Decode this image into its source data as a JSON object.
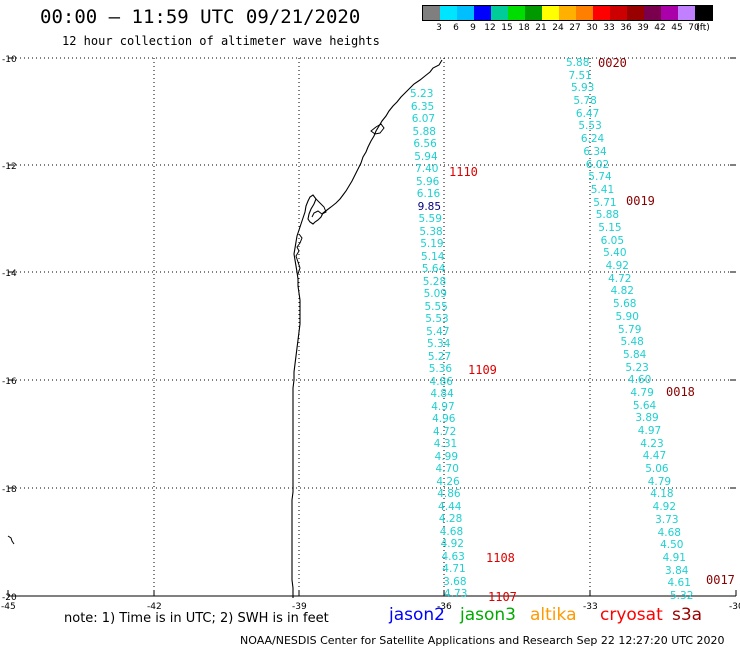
{
  "title": "00:00 – 11:59 UTC 09/21/2020",
  "subtitle": "12 hour collection of altimeter wave heights",
  "colorbar": {
    "colors": [
      "#7f7f7f",
      "#00e5ff",
      "#00bfff",
      "#0000ff",
      "#00cc99",
      "#00dd00",
      "#009900",
      "#ffff00",
      "#ffb000",
      "#ff8000",
      "#ff0000",
      "#cc0000",
      "#990000",
      "#7a004d",
      "#aa00aa",
      "#c080ff",
      "#000000"
    ],
    "labels": [
      "3",
      "6",
      "9",
      "12",
      "15",
      "18",
      "21",
      "24",
      "27",
      "30",
      "33",
      "36",
      "39",
      "42",
      "45",
      "70",
      "(ft)"
    ]
  },
  "axes": {
    "lat_labels": [
      "-10",
      "-12",
      "-14",
      "-16",
      "-18",
      "-20"
    ],
    "lon_labels": [
      "-45",
      "-42",
      "-39",
      "-36",
      "-33",
      "-30"
    ]
  },
  "track_west": {
    "swh": [
      "5.23",
      "6.35",
      "6.07",
      "5.88",
      "6.56",
      "5.94",
      "7.40",
      "5.96",
      "6.16",
      "9.85",
      "5.59",
      "5.38",
      "5.19",
      "5.14",
      "5.64",
      "5.28",
      "5.09",
      "5.55",
      "5.53",
      "5.47",
      "5.34",
      "5.27",
      "5.36",
      "4.86",
      "4.84",
      "4.97",
      "4.96",
      "4.72",
      "4.31",
      "4.99",
      "4.70",
      "4.26",
      "4.86",
      "4.44",
      "4.28",
      "4.68",
      "4.92",
      "4.63",
      "4.71",
      "3.68",
      "4.73"
    ],
    "times": [
      "1110",
      "1109",
      "1108",
      "1107"
    ]
  },
  "track_east": {
    "swh": [
      "5.88",
      "7.51",
      "5.93",
      "5.78",
      "6.47",
      "5.53",
      "6.24",
      "6.34",
      "6.02",
      "5.74",
      "5.41",
      "5.71",
      "5.88",
      "5.15",
      "6.05",
      "5.40",
      "4.92",
      "4.72",
      "4.82",
      "5.68",
      "5.90",
      "5.79",
      "5.48",
      "5.84",
      "5.23",
      "4.60",
      "4.79",
      "5.64",
      "3.89",
      "4.97",
      "4.23",
      "4.47",
      "5.06",
      "4.79",
      "4.18",
      "4.92",
      "3.73",
      "4.68",
      "4.50",
      "4.91",
      "3.84",
      "4.61",
      "5.32"
    ],
    "times": [
      "0020",
      "0019",
      "0018",
      "0017"
    ]
  },
  "note": "note: 1) Time is in UTC; 2) SWH is in feet",
  "satellites": [
    {
      "name": "jason2",
      "color": "#0000ff"
    },
    {
      "name": "jason3",
      "color": "#00aa00"
    },
    {
      "name": "altika",
      "color": "#ff9900"
    },
    {
      "name": "cryosat",
      "color": "#ff0000"
    },
    {
      "name": "s3a",
      "color": "#990000"
    }
  ],
  "footer": "NOAA/NESDIS Center for Satellite Applications and Research    Sep 22 12:27:20 UTC 2020",
  "colors": {
    "swh": "#1ed0d0",
    "swh_high": "#000080",
    "jason_time": "#dd0000",
    "s3a_time": "#880000"
  }
}
